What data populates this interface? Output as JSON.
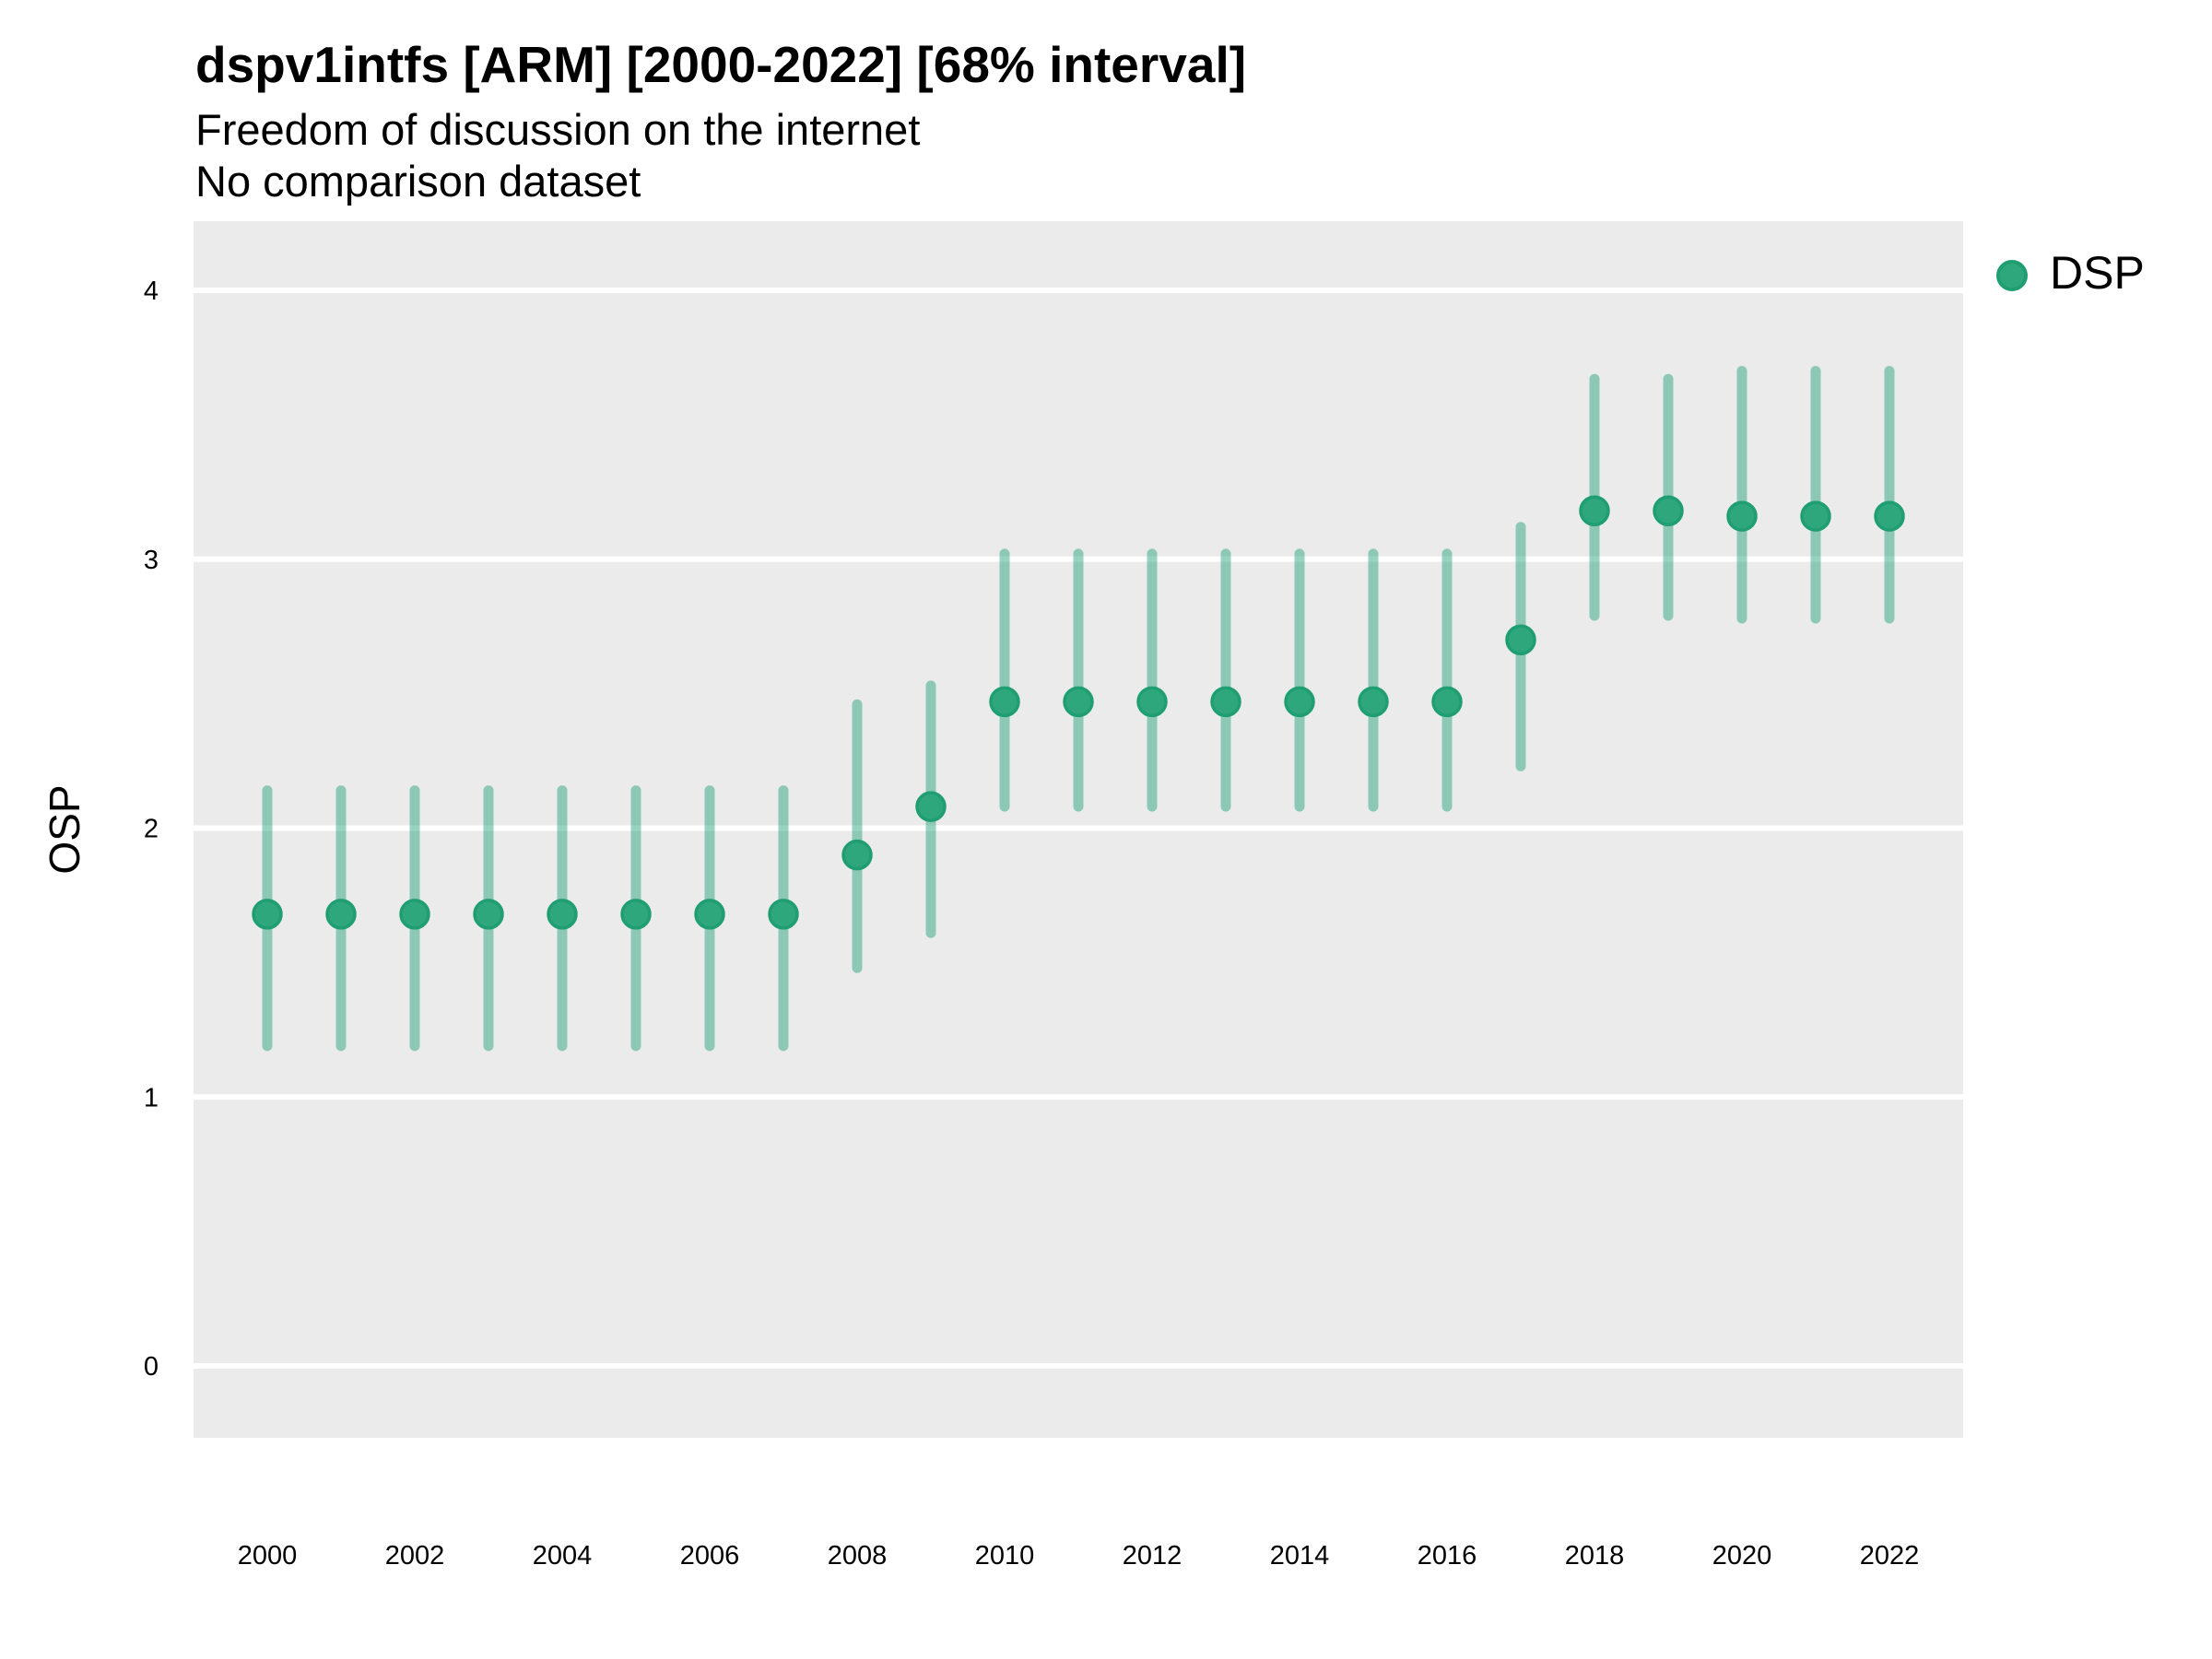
{
  "header": {
    "title": "dspv1intfs [ARM] [2000-2022] [68% interval]",
    "subtitle_line1": "Freedom of discussion on the internet",
    "subtitle_line2": "No comparison dataset"
  },
  "legend": {
    "label": "DSP"
  },
  "axes": {
    "y_label": "OSP",
    "y_tick_labels": [
      "0",
      "1",
      "2",
      "3",
      "4"
    ],
    "x_tick_labels": [
      "2000",
      "2002",
      "2004",
      "2006",
      "2008",
      "2010",
      "2012",
      "2014",
      "2016",
      "2018",
      "2020",
      "2022"
    ]
  },
  "colors": {
    "point_fill": "#2ea77c",
    "point_stroke": "#1f9e72",
    "interval_stroke": "rgba(27,158,119,0.45)",
    "panel_bg": "#ebebeb",
    "gridline": "#ffffff",
    "text": "#000000",
    "background": "#ffffff"
  },
  "chart_data": {
    "type": "pointrange",
    "title": "dspv1intfs [ARM] [2000-2022] [68% interval]",
    "subtitle": [
      "Freedom of discussion on the internet",
      "No comparison dataset"
    ],
    "xlabel": "",
    "ylabel": "OSP",
    "interval_level": "68%",
    "xlim": [
      1999,
      2023
    ],
    "ylim": [
      0,
      4
    ],
    "x_tick_values": [
      2000,
      2002,
      2004,
      2006,
      2008,
      2010,
      2012,
      2014,
      2016,
      2018,
      2020,
      2022
    ],
    "y_tick_values": [
      0,
      1,
      2,
      3,
      4
    ],
    "grid": "horizontal-major-white",
    "legend_position": "right-top",
    "series": [
      {
        "name": "DSP",
        "x": [
          2000,
          2001,
          2002,
          2003,
          2004,
          2005,
          2006,
          2007,
          2008,
          2009,
          2010,
          2011,
          2012,
          2013,
          2014,
          2015,
          2016,
          2017,
          2018,
          2019,
          2020,
          2021,
          2022
        ],
        "estimate": [
          1.68,
          1.68,
          1.68,
          1.68,
          1.68,
          1.68,
          1.68,
          1.68,
          1.9,
          2.08,
          2.47,
          2.47,
          2.47,
          2.47,
          2.47,
          2.47,
          2.47,
          2.7,
          3.18,
          3.18,
          3.16,
          3.16,
          3.16
        ],
        "lower_68": [
          1.19,
          1.19,
          1.19,
          1.19,
          1.19,
          1.19,
          1.19,
          1.19,
          1.48,
          1.61,
          2.08,
          2.08,
          2.08,
          2.08,
          2.08,
          2.08,
          2.08,
          2.23,
          2.79,
          2.79,
          2.78,
          2.78,
          2.78
        ],
        "upper_68": [
          2.14,
          2.14,
          2.14,
          2.14,
          2.14,
          2.14,
          2.14,
          2.14,
          2.46,
          2.53,
          3.02,
          3.02,
          3.02,
          3.02,
          3.02,
          3.02,
          3.02,
          3.12,
          3.67,
          3.67,
          3.7,
          3.7,
          3.7
        ]
      }
    ]
  }
}
